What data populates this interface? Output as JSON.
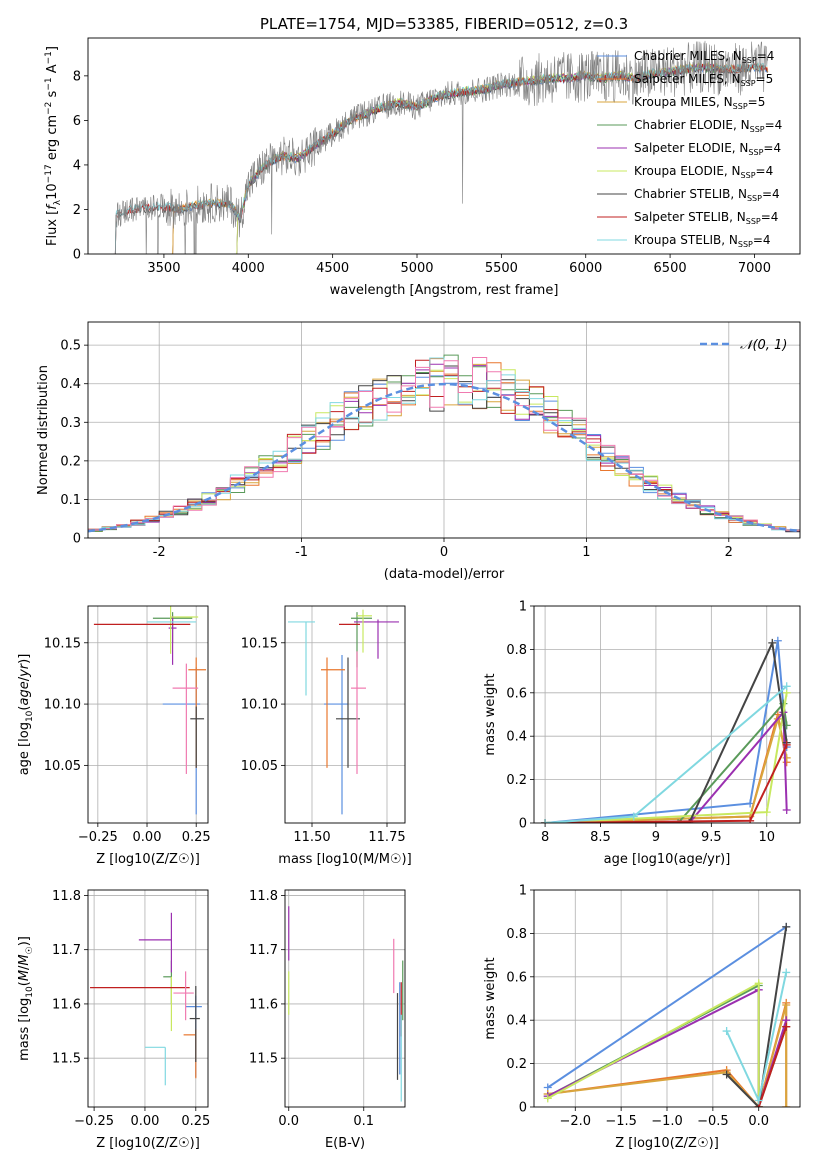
{
  "figure": {
    "title": "PLATE=1754, MJD=53385, FIBERID=0512, z=0.3"
  },
  "colors": {
    "Chabrier MILES": "#5b8fe0",
    "Salpeter MILES": "#e8772e",
    "Kroupa MILES": "#d9a53d",
    "Chabrier ELODIE": "#5a9a5a",
    "Salpeter ELODIE": "#9b30b0",
    "Kroupa ELODIE": "#c8e860",
    "Chabrier STELIB": "#444444",
    "Salpeter STELIB": "#c02020",
    "Kroupa STELIB": "#80d8e0",
    "pink": "#f07ab0"
  },
  "chart_data": [
    {
      "id": "spectrum",
      "type": "line",
      "xlabel": "wavelength [Angstrom, rest frame]",
      "ylabel": "Flux [f_λ 10^-17 erg cm^-2 s^-1 A^-1]",
      "xlim": [
        3050,
        7270
      ],
      "ylim": [
        0,
        9.7
      ],
      "xticks": [
        3500,
        4000,
        4500,
        5000,
        5500,
        6000,
        6500,
        7000
      ],
      "yticks": [
        0,
        2,
        4,
        6,
        8
      ],
      "legend_position": "top-right",
      "legend": [
        {
          "label": "Chabrier MILES, N",
          "sub": "SSP",
          "val": "=4"
        },
        {
          "label": "Salpeter MILES, N",
          "sub": "SSP",
          "val": "=5"
        },
        {
          "label": "Kroupa MILES, N",
          "sub": "SSP",
          "val": "=5"
        },
        {
          "label": "Chabrier ELODIE, N",
          "sub": "SSP",
          "val": "=4"
        },
        {
          "label": "Salpeter ELODIE, N",
          "sub": "SSP",
          "val": "=4"
        },
        {
          "label": "Kroupa ELODIE, N",
          "sub": "SSP",
          "val": "=4"
        },
        {
          "label": "Chabrier STELIB, N",
          "sub": "SSP",
          "val": "=4"
        },
        {
          "label": "Salpeter STELIB, N",
          "sub": "SSP",
          "val": "=4"
        },
        {
          "label": "Kroupa STELIB, N",
          "sub": "SSP",
          "val": "=4"
        }
      ],
      "continuum_x": [
        3200,
        3300,
        3400,
        3500,
        3600,
        3700,
        3800,
        3900,
        3950,
        4000,
        4100,
        4200,
        4300,
        4400,
        4500,
        4600,
        4700,
        4800,
        4900,
        5000,
        5100,
        5200,
        5300,
        5400,
        5500,
        5600,
        5700,
        5800,
        5900,
        6000,
        6100,
        6200,
        6300,
        6400,
        6500,
        6600,
        6700,
        6800,
        6900,
        7000,
        7100
      ],
      "continuum_y": [
        1.7,
        2.0,
        2.05,
        2.1,
        2.0,
        2.2,
        2.3,
        2.2,
        1.6,
        3.1,
        4.0,
        4.4,
        4.3,
        4.9,
        5.4,
        6.0,
        6.3,
        6.6,
        6.8,
        6.6,
        7.0,
        7.2,
        7.3,
        7.4,
        7.6,
        7.7,
        7.8,
        7.9,
        7.9,
        8.0,
        7.9,
        8.0,
        7.9,
        8.1,
        8.2,
        8.3,
        8.4,
        8.3,
        8.3,
        8.4,
        8.3
      ]
    },
    {
      "id": "residuals",
      "type": "line",
      "xlabel": "(data-model)/error",
      "ylabel": "Normed distribution",
      "xlim": [
        -2.5,
        2.5
      ],
      "ylim": [
        0,
        0.56
      ],
      "xticks": [
        -2,
        -1,
        0,
        1,
        2
      ],
      "yticks": [
        0.0,
        0.1,
        0.2,
        0.3,
        0.4,
        0.5
      ],
      "grid": true,
      "legend_position": "top-right",
      "legend": [
        {
          "label": "𝒩(0, 1)"
        }
      ],
      "reference_curve": {
        "name": "𝒩(0, 1)",
        "mean": 0,
        "sigma": 1,
        "style": "dashed"
      }
    },
    {
      "id": "age_vs_Z",
      "type": "scatter",
      "xlabel": "Z [log10(Z/Z☉)]",
      "ylabel": "age [log10(age/yr)]",
      "xlim": [
        -0.3,
        0.31
      ],
      "ylim": [
        10.003,
        10.18
      ],
      "xticks": [
        -0.25,
        0.0,
        0.25
      ],
      "xticklabels": [
        "−0.25",
        "0.00",
        "0.25"
      ],
      "yticks": [
        10.05,
        10.1,
        10.15
      ],
      "yticklabels": [
        "10.05",
        "10.10",
        "10.15"
      ],
      "grid": true,
      "points": [
        {
          "x": 0.25,
          "y": 10.1,
          "xerr": [
            0.17,
            0.02
          ],
          "yerr": [
            0.09,
            0.03
          ],
          "color": "Chabrier MILES"
        },
        {
          "x": 0.25,
          "y": 10.128,
          "xerr": [
            0.04,
            0.05
          ],
          "yerr": [
            0.08,
            0.01
          ],
          "color": "Salpeter MILES"
        },
        {
          "x": 0.13,
          "y": 10.17,
          "xerr": [
            0.1,
            0.1
          ],
          "yerr": [
            0.02,
            0.005
          ],
          "color": "Chabrier ELODIE"
        },
        {
          "x": 0.13,
          "y": 10.162,
          "xerr": [
            0.02,
            0.02
          ],
          "yerr": [
            0.03,
            0.01
          ],
          "color": "Salpeter ELODIE"
        },
        {
          "x": 0.12,
          "y": 10.171,
          "xerr": [
            0.0,
            0.14
          ],
          "yerr": [
            0.03,
            0.01
          ],
          "color": "Kroupa ELODIE"
        },
        {
          "x": 0.25,
          "y": 10.088,
          "xerr": [
            0.03,
            0.04
          ],
          "yerr": [
            0.04,
            0.01
          ],
          "color": "Chabrier STELIB"
        },
        {
          "x": 0.0,
          "y": 10.165,
          "xerr": [
            0.27,
            0.22
          ],
          "yerr": [
            0.0,
            0.0
          ],
          "color": "Salpeter STELIB"
        },
        {
          "x": 0.0,
          "y": 10.167,
          "xerr": [
            0.0,
            0.25
          ],
          "yerr": [
            0.0,
            0.0
          ],
          "color": "Kroupa STELIB"
        },
        {
          "x": 0.2,
          "y": 10.113,
          "xerr": [
            0.07,
            0.06
          ],
          "yerr": [
            0.07,
            0.02
          ],
          "color": "pink"
        }
      ]
    },
    {
      "id": "age_vs_mass",
      "type": "scatter",
      "xlabel": "mass [log10(M/M☉)]",
      "ylabel": "",
      "xlim": [
        11.41,
        11.81
      ],
      "ylim": [
        10.003,
        10.18
      ],
      "xticks": [
        11.5,
        11.75
      ],
      "xticklabels": [
        "11.50",
        "11.75"
      ],
      "yticks": [
        10.05,
        10.1,
        10.15
      ],
      "yticklabels": [
        "10.05",
        "10.10",
        "10.15"
      ],
      "grid": true,
      "points": [
        {
          "x": 11.6,
          "y": 10.1,
          "xerr": [
            0.06,
            0.02
          ],
          "yerr": [
            0.09,
            0.04
          ],
          "color": "Chabrier MILES"
        },
        {
          "x": 11.55,
          "y": 10.128,
          "xerr": [
            0.02,
            0.06
          ],
          "yerr": [
            0.08,
            0.01
          ],
          "color": "Salpeter MILES"
        },
        {
          "x": 11.65,
          "y": 10.17,
          "xerr": [
            0.02,
            0.05
          ],
          "yerr": [
            0.04,
            0.005
          ],
          "color": "Chabrier ELODIE"
        },
        {
          "x": 11.72,
          "y": 10.167,
          "xerr": [
            0.08,
            0.07
          ],
          "yerr": [
            0.03,
            0.002
          ],
          "color": "Salpeter ELODIE"
        },
        {
          "x": 11.67,
          "y": 10.172,
          "xerr": [
            0.02,
            0.03
          ],
          "yerr": [
            0.03,
            0.005
          ],
          "color": "Kroupa ELODIE"
        },
        {
          "x": 11.62,
          "y": 10.088,
          "xerr": [
            0.04,
            0.04
          ],
          "yerr": [
            0.04,
            0.05
          ],
          "color": "Chabrier STELIB"
        },
        {
          "x": 11.63,
          "y": 10.165,
          "xerr": [
            0.04,
            0.03
          ],
          "yerr": [
            0.0,
            0.0
          ],
          "color": "Salpeter STELIB"
        },
        {
          "x": 11.48,
          "y": 10.167,
          "xerr": [
            0.06,
            0.03
          ],
          "yerr": [
            0.06,
            0.0
          ],
          "color": "Kroupa STELIB"
        },
        {
          "x": 11.65,
          "y": 10.113,
          "xerr": [
            0.02,
            0.03
          ],
          "yerr": [
            0.07,
            0.03
          ],
          "color": "pink"
        }
      ]
    },
    {
      "id": "massweight_vs_age",
      "type": "line",
      "xlabel": "age [log10(age/yr)]",
      "ylabel": "mass weight",
      "xlim": [
        7.9,
        10.3
      ],
      "ylim": [
        0,
        1.0
      ],
      "xticks": [
        8.0,
        8.5,
        9.0,
        9.5,
        10.0
      ],
      "yticks": [
        0.0,
        0.2,
        0.4,
        0.6,
        0.8,
        1.0
      ],
      "grid": true,
      "series": [
        {
          "color": "Chabrier MILES",
          "x": [
            8.0,
            9.85,
            10.1,
            10.18
          ],
          "y": [
            0.0,
            0.09,
            0.84,
            0.35
          ]
        },
        {
          "color": "Salpeter MILES",
          "x": [
            8.0,
            9.85,
            10.1,
            10.18
          ],
          "y": [
            0.0,
            0.03,
            0.5,
            0.28
          ]
        },
        {
          "color": "Kroupa MILES",
          "x": [
            8.0,
            9.85,
            10.1,
            10.18
          ],
          "y": [
            0.0,
            0.03,
            0.48,
            0.3
          ]
        },
        {
          "color": "Chabrier ELODIE",
          "x": [
            8.0,
            9.2,
            10.15,
            10.18
          ],
          "y": [
            0.0,
            0.0,
            0.55,
            0.45
          ]
        },
        {
          "color": "Salpeter ELODIE",
          "x": [
            8.0,
            9.3,
            10.15,
            10.18
          ],
          "y": [
            0.0,
            0.0,
            0.51,
            0.06
          ]
        },
        {
          "color": "Kroupa ELODIE",
          "x": [
            8.0,
            10.0,
            10.18
          ],
          "y": [
            0.0,
            0.05,
            0.6
          ]
        },
        {
          "color": "Chabrier STELIB",
          "x": [
            8.0,
            9.3,
            10.05,
            10.18
          ],
          "y": [
            0.0,
            0.0,
            0.83,
            0.37
          ]
        },
        {
          "color": "Salpeter STELIB",
          "x": [
            8.0,
            9.85,
            10.18
          ],
          "y": [
            0.0,
            0.01,
            0.36
          ]
        },
        {
          "color": "Kroupa STELIB",
          "x": [
            8.0,
            8.8,
            10.18
          ],
          "y": [
            0.0,
            0.03,
            0.63
          ]
        }
      ]
    },
    {
      "id": "mass_vs_Z",
      "type": "scatter",
      "xlabel": "Z [log10(Z/Z☉)]",
      "ylabel": "mass [log10(M/M☉)]",
      "xlim": [
        -0.28,
        0.31
      ],
      "ylim": [
        11.41,
        11.81
      ],
      "xticks": [
        -0.25,
        0.0,
        0.25
      ],
      "xticklabels": [
        "−0.25",
        "0.00",
        "0.25"
      ],
      "yticks": [
        11.5,
        11.6,
        11.7,
        11.8
      ],
      "yticklabels": [
        "11.5",
        "11.6",
        "11.7",
        "11.8"
      ],
      "grid": true,
      "points": [
        {
          "x": 0.25,
          "y": 11.595,
          "xerr": [
            0.05,
            0.03
          ],
          "yerr": [
            0.13,
            0.02
          ],
          "color": "Chabrier MILES"
        },
        {
          "x": 0.25,
          "y": 11.543,
          "xerr": [
            0.06,
            0.0
          ],
          "yerr": [
            0.08,
            0.01
          ],
          "color": "Salpeter MILES"
        },
        {
          "x": 0.13,
          "y": 11.65,
          "xerr": [
            0.04,
            0.0
          ],
          "yerr": [
            0.05,
            0.03
          ],
          "color": "Chabrier ELODIE"
        },
        {
          "x": 0.13,
          "y": 11.718,
          "xerr": [
            0.16,
            0.0
          ],
          "yerr": [
            0.06,
            0.05
          ],
          "color": "Salpeter ELODIE"
        },
        {
          "x": 0.13,
          "y": 11.62,
          "xerr": [
            0.0,
            0.0
          ],
          "yerr": [
            0.07,
            0.03
          ],
          "color": "Kroupa ELODIE"
        },
        {
          "x": 0.25,
          "y": 11.573,
          "xerr": [
            0.03,
            0.02
          ],
          "yerr": [
            0.08,
            0.06
          ],
          "color": "Chabrier STELIB"
        },
        {
          "x": 0.0,
          "y": 11.63,
          "xerr": [
            0.27,
            0.22
          ],
          "yerr": [
            0.0,
            0.0
          ],
          "color": "Salpeter STELIB"
        },
        {
          "x": 0.1,
          "y": 11.52,
          "xerr": [
            0.1,
            0.0
          ],
          "yerr": [
            0.07,
            0.0
          ],
          "color": "Kroupa STELIB"
        },
        {
          "x": 0.2,
          "y": 11.62,
          "xerr": [
            0.06,
            0.04
          ],
          "yerr": [
            0.05,
            0.04
          ],
          "color": "pink"
        }
      ]
    },
    {
      "id": "mass_vs_ebv",
      "type": "scatter",
      "xlabel": "E(B-V)",
      "ylabel": "",
      "xlim": [
        -0.005,
        0.155
      ],
      "ylim": [
        11.41,
        11.81
      ],
      "xticks": [
        0.0,
        0.1
      ],
      "xticklabels": [
        "0.0",
        "0.1"
      ],
      "yticks": [
        11.5,
        11.6,
        11.7,
        11.8
      ],
      "yticklabels": [
        "11.5",
        "11.6",
        "11.7",
        "11.8"
      ],
      "grid": true,
      "points": [
        {
          "x": 0.0,
          "y": 11.73,
          "xerr": [
            0,
            0
          ],
          "yerr": [
            0.05,
            0.05
          ],
          "color": "Salpeter ELODIE"
        },
        {
          "x": 0.0,
          "y": 11.64,
          "xerr": [
            0,
            0
          ],
          "yerr": [
            0.06,
            0.02
          ],
          "color": "Kroupa ELODIE"
        },
        {
          "x": 0.14,
          "y": 11.67,
          "xerr": [
            0,
            0
          ],
          "yerr": [
            0.05,
            0.05
          ],
          "color": "pink"
        },
        {
          "x": 0.145,
          "y": 11.58,
          "xerr": [
            0,
            0
          ],
          "yerr": [
            0.12,
            0.04
          ],
          "color": "Chabrier STELIB"
        },
        {
          "x": 0.148,
          "y": 11.54,
          "xerr": [
            0,
            0
          ],
          "yerr": [
            0.07,
            0.1
          ],
          "color": "Chabrier MILES"
        },
        {
          "x": 0.15,
          "y": 11.6,
          "xerr": [
            0,
            0
          ],
          "yerr": [
            0.06,
            0.04
          ],
          "color": "Salpeter STELIB"
        },
        {
          "x": 0.15,
          "y": 11.56,
          "xerr": [
            0,
            0
          ],
          "yerr": [
            0.14,
            0.02
          ],
          "color": "Kroupa STELIB"
        },
        {
          "x": 0.152,
          "y": 11.64,
          "xerr": [
            0,
            0
          ],
          "yerr": [
            0.07,
            0.04
          ],
          "color": "Chabrier ELODIE"
        }
      ]
    },
    {
      "id": "massweight_vs_Z",
      "type": "line",
      "xlabel": "Z [log10(Z/Z☉)]",
      "ylabel": "mass weight",
      "xlim": [
        -2.45,
        0.45
      ],
      "ylim": [
        0,
        1.0
      ],
      "xticks": [
        -2.0,
        -1.5,
        -1.0,
        -0.5,
        0.0
      ],
      "xticklabels": [
        "−2.0",
        "−1.5",
        "−1.0",
        "−0.5",
        "0.0"
      ],
      "yticks": [
        0.0,
        0.2,
        0.4,
        0.6,
        0.8,
        1.0
      ],
      "grid": true,
      "series": [
        {
          "color": "Chabrier MILES",
          "x": [
            -2.3,
            0.3
          ],
          "y": [
            0.09,
            0.83
          ]
        },
        {
          "color": "Salpeter MILES",
          "x": [
            -2.3,
            -0.35,
            0.0,
            0.3,
            0.3
          ],
          "y": [
            0.06,
            0.17,
            0.0,
            0.48,
            0.0
          ]
        },
        {
          "color": "Kroupa MILES",
          "x": [
            -2.3,
            -0.35,
            0.0,
            0.3,
            0.3
          ],
          "y": [
            0.06,
            0.16,
            0.0,
            0.47,
            0.0
          ]
        },
        {
          "color": "Chabrier ELODIE",
          "x": [
            -2.3,
            0.0,
            0.0,
            0.3
          ],
          "y": [
            0.05,
            0.56,
            0.0,
            0.37
          ]
        },
        {
          "color": "Salpeter ELODIE",
          "x": [
            -2.3,
            0.0,
            0.0,
            0.3
          ],
          "y": [
            0.05,
            0.54,
            0.0,
            0.4
          ]
        },
        {
          "color": "Kroupa ELODIE",
          "x": [
            -2.3,
            0.0,
            0.0
          ],
          "y": [
            0.04,
            0.57,
            0.0
          ]
        },
        {
          "color": "Chabrier STELIB",
          "x": [
            -0.35,
            0.0,
            0.3
          ],
          "y": [
            0.15,
            0.0,
            0.83
          ]
        },
        {
          "color": "Salpeter STELIB",
          "x": [
            0.0,
            0.3
          ],
          "y": [
            0.0,
            0.37
          ]
        },
        {
          "color": "Kroupa STELIB",
          "x": [
            -0.35,
            0.0,
            0.3
          ],
          "y": [
            0.35,
            0.03,
            0.62
          ]
        }
      ]
    }
  ]
}
